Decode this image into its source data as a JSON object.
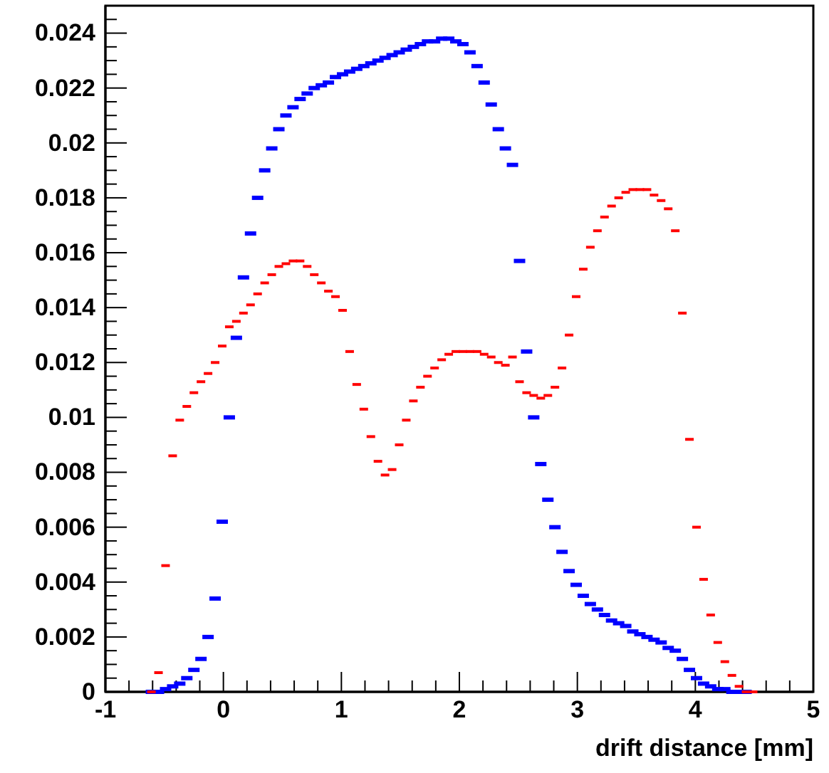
{
  "chart_data": {
    "type": "scatter",
    "xlabel": "drift distance [mm]",
    "xlim": [
      -1,
      5
    ],
    "ylim": [
      0,
      0.025
    ],
    "xticks": [
      -1,
      {
        "value": -0.8,
        "label": null
      },
      {
        "value": -0.6,
        "label": null
      },
      {
        "value": -0.4,
        "label": null
      },
      {
        "value": -0.2,
        "label": null
      },
      0,
      {
        "value": 0.2,
        "label": null
      },
      {
        "value": 0.4,
        "label": null
      },
      {
        "value": 0.6,
        "label": null
      },
      {
        "value": 0.8,
        "label": null
      },
      1,
      {
        "value": 1.2,
        "label": null
      },
      {
        "value": 1.4,
        "label": null
      },
      {
        "value": 1.6,
        "label": null
      },
      {
        "value": 1.8,
        "label": null
      },
      2,
      {
        "value": 2.2,
        "label": null
      },
      {
        "value": 2.4,
        "label": null
      },
      {
        "value": 2.6,
        "label": null
      },
      {
        "value": 2.8,
        "label": null
      },
      3,
      {
        "value": 3.2,
        "label": null
      },
      {
        "value": 3.4,
        "label": null
      },
      {
        "value": 3.6,
        "label": null
      },
      {
        "value": 3.8,
        "label": null
      },
      4,
      {
        "value": 4.2,
        "label": null
      },
      {
        "value": 4.4,
        "label": null
      },
      {
        "value": 4.6,
        "label": null
      },
      {
        "value": 4.8,
        "label": null
      },
      5
    ],
    "yticks": [
      0,
      {
        "value": 0.0005,
        "label": null
      },
      {
        "value": 0.001,
        "label": null
      },
      {
        "value": 0.0015,
        "label": null
      },
      0.002,
      {
        "value": 0.0025,
        "label": null
      },
      {
        "value": 0.003,
        "label": null
      },
      {
        "value": 0.0035,
        "label": null
      },
      0.004,
      {
        "value": 0.0045,
        "label": null
      },
      {
        "value": 0.005,
        "label": null
      },
      {
        "value": 0.0055,
        "label": null
      },
      0.006,
      {
        "value": 0.0065,
        "label": null
      },
      {
        "value": 0.007,
        "label": null
      },
      {
        "value": 0.0075,
        "label": null
      },
      0.008,
      {
        "value": 0.0085,
        "label": null
      },
      {
        "value": 0.009,
        "label": null
      },
      {
        "value": 0.0095,
        "label": null
      },
      0.01,
      {
        "value": 0.0105,
        "label": null
      },
      {
        "value": 0.011,
        "label": null
      },
      {
        "value": 0.0115,
        "label": null
      },
      0.012,
      {
        "value": 0.0125,
        "label": null
      },
      {
        "value": 0.013,
        "label": null
      },
      {
        "value": 0.0135,
        "label": null
      },
      0.014,
      {
        "value": 0.0145,
        "label": null
      },
      {
        "value": 0.015,
        "label": null
      },
      {
        "value": 0.0155,
        "label": null
      },
      0.016,
      {
        "value": 0.0165,
        "label": null
      },
      {
        "value": 0.017,
        "label": null
      },
      {
        "value": 0.0175,
        "label": null
      },
      0.018,
      {
        "value": 0.0185,
        "label": null
      },
      {
        "value": 0.019,
        "label": null
      },
      {
        "value": 0.0195,
        "label": null
      },
      0.02,
      {
        "value": 0.0205,
        "label": null
      },
      {
        "value": 0.021,
        "label": null
      },
      {
        "value": 0.0215,
        "label": null
      },
      0.022,
      {
        "value": 0.0225,
        "label": null
      },
      {
        "value": 0.023,
        "label": null
      },
      {
        "value": 0.0235,
        "label": null
      },
      0.024,
      {
        "value": 0.0245,
        "label": null
      }
    ],
    "series": [
      {
        "color": "#0000ff",
        "x": [
          -0.61,
          -0.55,
          -0.49,
          -0.43,
          -0.37,
          -0.31,
          -0.25,
          -0.19,
          -0.13,
          -0.07,
          -0.01,
          0.05,
          0.11,
          0.17,
          0.23,
          0.29,
          0.35,
          0.41,
          0.47,
          0.53,
          0.59,
          0.65,
          0.71,
          0.77,
          0.83,
          0.89,
          0.95,
          1.01,
          1.07,
          1.13,
          1.19,
          1.25,
          1.31,
          1.37,
          1.43,
          1.49,
          1.55,
          1.61,
          1.67,
          1.73,
          1.79,
          1.85,
          1.91,
          1.97,
          2.03,
          2.09,
          2.15,
          2.21,
          2.27,
          2.33,
          2.39,
          2.45,
          2.51,
          2.57,
          2.63,
          2.69,
          2.75,
          2.81,
          2.87,
          2.93,
          2.99,
          3.05,
          3.11,
          3.17,
          3.23,
          3.29,
          3.35,
          3.41,
          3.47,
          3.53,
          3.59,
          3.65,
          3.71,
          3.77,
          3.83,
          3.89,
          3.95,
          4.01,
          4.07,
          4.13,
          4.19,
          4.25,
          4.31,
          4.37,
          4.43
        ],
        "values": [
          0,
          0,
          0.0001,
          0.0002,
          0.0003,
          0.0005,
          0.0008,
          0.0012,
          0.002,
          0.0034,
          0.0062,
          0.01,
          0.0129,
          0.0151,
          0.0167,
          0.018,
          0.019,
          0.0198,
          0.0205,
          0.021,
          0.0213,
          0.0216,
          0.0218,
          0.022,
          0.0221,
          0.0222,
          0.0224,
          0.0225,
          0.0226,
          0.0227,
          0.0228,
          0.0229,
          0.023,
          0.0231,
          0.0232,
          0.0233,
          0.0234,
          0.0235,
          0.0236,
          0.0237,
          0.0237,
          0.0238,
          0.0238,
          0.0237,
          0.0236,
          0.0233,
          0.0228,
          0.0222,
          0.0214,
          0.0205,
          0.0198,
          0.0192,
          0.0157,
          0.0124,
          0.01,
          0.0083,
          0.007,
          0.006,
          0.0051,
          0.0044,
          0.0039,
          0.0035,
          0.0032,
          0.003,
          0.0028,
          0.0026,
          0.0025,
          0.0024,
          0.0022,
          0.0021,
          0.002,
          0.0019,
          0.0018,
          0.0016,
          0.0015,
          0.0012,
          0.0008,
          0.0005,
          0.0003,
          0.0002,
          0.0001,
          0.0001,
          0,
          0,
          0
        ]
      },
      {
        "color": "#ff0000",
        "x": [
          -0.61,
          -0.55,
          -0.49,
          -0.43,
          -0.37,
          -0.31,
          -0.25,
          -0.19,
          -0.13,
          -0.07,
          -0.01,
          0.05,
          0.11,
          0.17,
          0.23,
          0.29,
          0.35,
          0.41,
          0.47,
          0.53,
          0.59,
          0.65,
          0.71,
          0.77,
          0.83,
          0.89,
          0.95,
          1.01,
          1.07,
          1.13,
          1.19,
          1.25,
          1.31,
          1.37,
          1.43,
          1.49,
          1.55,
          1.61,
          1.67,
          1.73,
          1.79,
          1.85,
          1.91,
          1.97,
          2.03,
          2.09,
          2.15,
          2.21,
          2.27,
          2.33,
          2.39,
          2.45,
          2.51,
          2.57,
          2.63,
          2.69,
          2.75,
          2.81,
          2.87,
          2.93,
          2.99,
          3.05,
          3.11,
          3.17,
          3.23,
          3.29,
          3.35,
          3.41,
          3.47,
          3.53,
          3.59,
          3.65,
          3.71,
          3.77,
          3.83,
          3.89,
          3.95,
          4.01,
          4.07,
          4.13,
          4.19,
          4.25,
          4.31,
          4.37,
          4.43,
          4.49
        ],
        "values": [
          0,
          0.0007,
          0.0046,
          0.0086,
          0.0099,
          0.0104,
          0.0109,
          0.0113,
          0.0116,
          0.012,
          0.0126,
          0.0133,
          0.0135,
          0.0138,
          0.0141,
          0.0145,
          0.0149,
          0.0152,
          0.0155,
          0.0156,
          0.0157,
          0.0157,
          0.0155,
          0.0152,
          0.0149,
          0.0146,
          0.0144,
          0.0139,
          0.0124,
          0.0112,
          0.0103,
          0.0093,
          0.0084,
          0.0079,
          0.0081,
          0.009,
          0.0099,
          0.0106,
          0.0111,
          0.0115,
          0.0118,
          0.0121,
          0.0123,
          0.0124,
          0.0124,
          0.0124,
          0.0124,
          0.0123,
          0.0122,
          0.012,
          0.0119,
          0.0122,
          0.0113,
          0.0109,
          0.0108,
          0.0107,
          0.0108,
          0.0111,
          0.0118,
          0.013,
          0.0144,
          0.0154,
          0.0162,
          0.0168,
          0.0173,
          0.0177,
          0.018,
          0.0182,
          0.0183,
          0.0183,
          0.0183,
          0.0181,
          0.0179,
          0.0176,
          0.0168,
          0.0138,
          0.0092,
          0.006,
          0.0041,
          0.0028,
          0.0018,
          0.0011,
          0.0006,
          0.0002,
          0,
          0
        ]
      }
    ]
  }
}
